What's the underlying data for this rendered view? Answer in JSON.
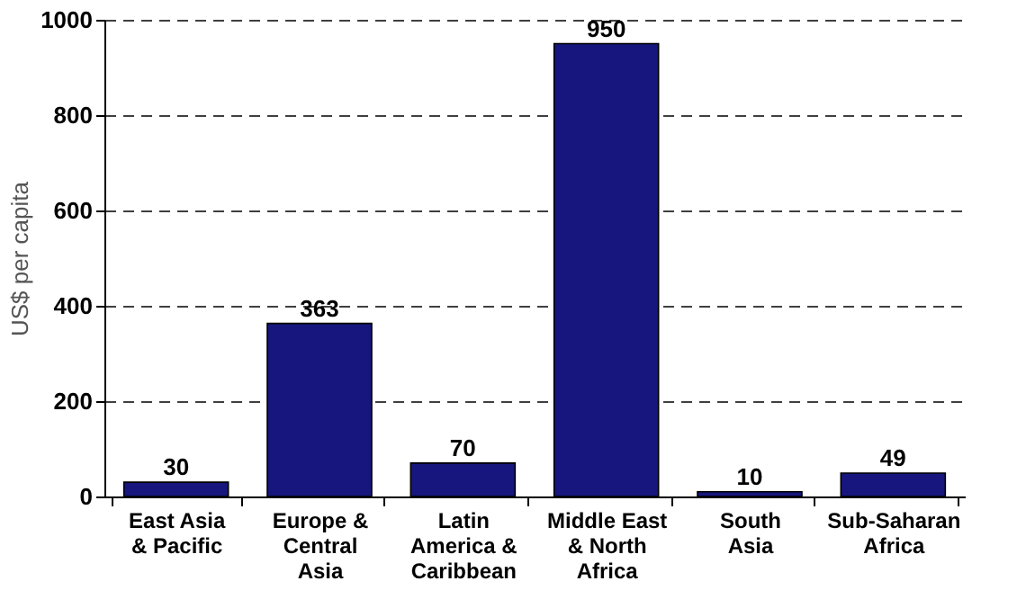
{
  "chart_data": {
    "type": "bar",
    "ylabel": "US$ per capita",
    "categories": [
      "East Asia\n& Pacific",
      "Europe &\nCentral\nAsia",
      "Latin\nAmerica &\nCaribbean",
      "Middle East\n& North\nAfrica",
      "South\nAsia",
      "Sub-Saharan\nAfrica"
    ],
    "values": [
      30,
      363,
      70,
      950,
      10,
      49
    ],
    "color": "#16167e",
    "ylim": [
      0,
      1000
    ],
    "yticks": [
      0,
      200,
      400,
      600,
      800,
      1000
    ],
    "grid": "y",
    "data_labels": true
  }
}
